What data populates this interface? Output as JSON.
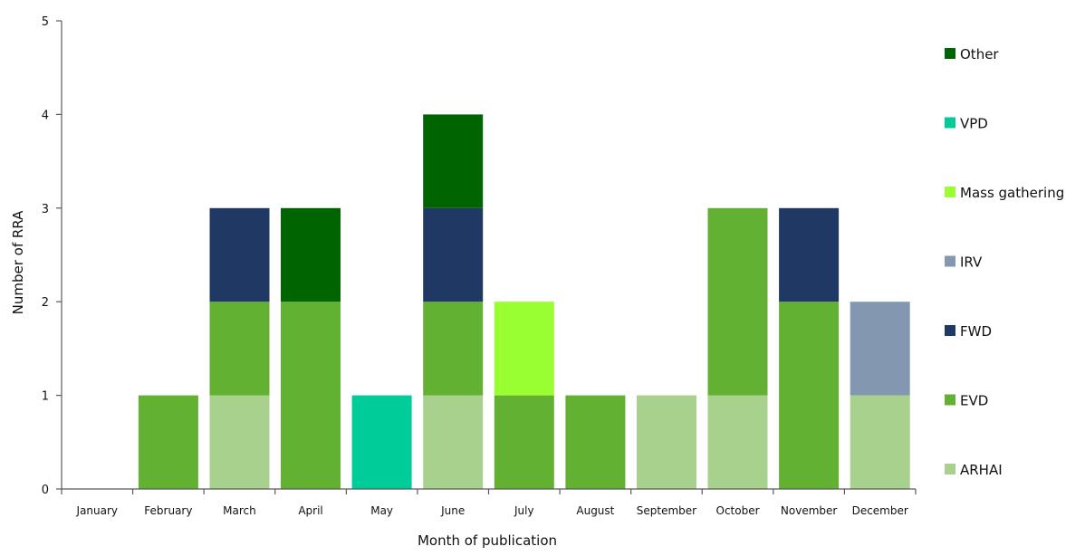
{
  "chart_data": {
    "type": "bar",
    "stacked": true,
    "title": "",
    "xlabel": "Month of publication",
    "ylabel": "Number of RRA",
    "ylim": [
      0,
      5
    ],
    "yticks": [
      0,
      1,
      2,
      3,
      4,
      5
    ],
    "grid": false,
    "legend_position": "right",
    "categories": [
      "January",
      "February",
      "March",
      "April",
      "May",
      "June",
      "July",
      "August",
      "September",
      "October",
      "November",
      "December"
    ],
    "series": [
      {
        "name": "ARHAI",
        "color": "#a9d18e",
        "values": [
          0,
          0,
          1,
          0,
          0,
          1,
          0,
          0,
          1,
          1,
          0,
          1
        ]
      },
      {
        "name": "EVD",
        "color": "#63b132",
        "values": [
          0,
          1,
          1,
          2,
          0,
          1,
          1,
          1,
          0,
          2,
          2,
          0
        ]
      },
      {
        "name": "FWD",
        "color": "#1f3864",
        "values": [
          0,
          0,
          1,
          0,
          0,
          1,
          0,
          0,
          0,
          0,
          1,
          0
        ]
      },
      {
        "name": "IRV",
        "color": "#8497b0",
        "values": [
          0,
          0,
          0,
          0,
          0,
          0,
          0,
          0,
          0,
          0,
          0,
          1
        ]
      },
      {
        "name": "Mass gathering",
        "color": "#99ff33",
        "values": [
          0,
          0,
          0,
          0,
          0,
          0,
          1,
          0,
          0,
          0,
          0,
          0
        ]
      },
      {
        "name": "VPD",
        "color": "#00cc99",
        "values": [
          0,
          0,
          0,
          0,
          1,
          0,
          0,
          0,
          0,
          0,
          0,
          0
        ]
      },
      {
        "name": "Other",
        "color": "#006400",
        "values": [
          0,
          0,
          0,
          1,
          0,
          1,
          0,
          0,
          0,
          0,
          0,
          0
        ]
      }
    ]
  }
}
